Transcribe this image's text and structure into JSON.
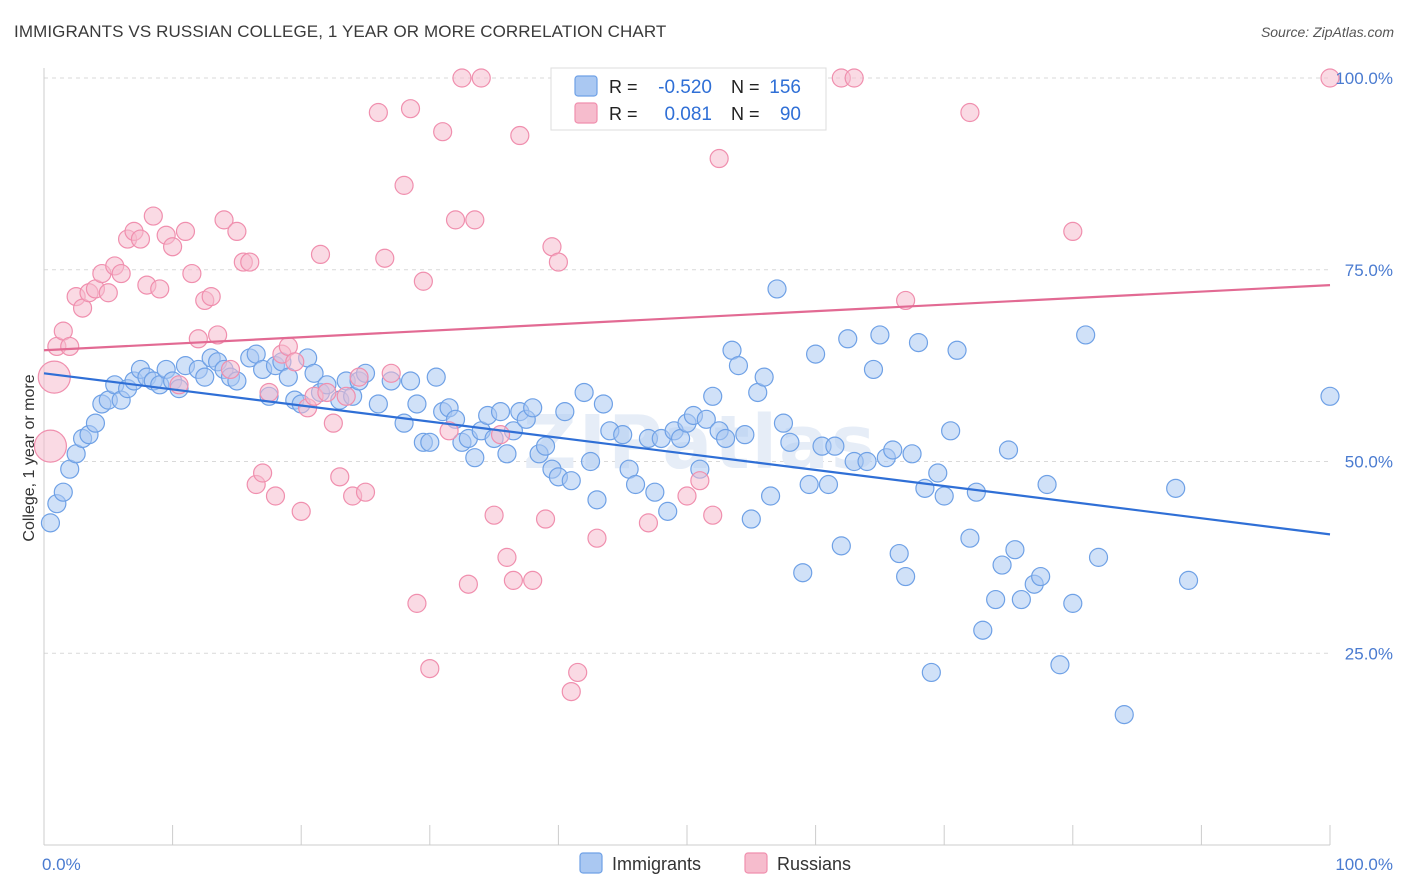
{
  "title": "IMMIGRANTS VS RUSSIAN COLLEGE, 1 YEAR OR MORE CORRELATION CHART",
  "source": "Source: ZipAtlas.com",
  "watermark": "ZIPatlas",
  "colors": {
    "blue": "#6fa1e6",
    "blue_fill": "#aac8f2",
    "blue_line": "#2f6fd6",
    "pink": "#f08fae",
    "pink_fill": "#f6bccd",
    "pink_line": "#e26a93",
    "grid": "#d9d9d9",
    "tick_label": "#4a7bd0"
  },
  "legend": {
    "rows": [
      {
        "r_label": "R =",
        "r_value": "-0.520",
        "n_label": "N =",
        "n_value": "156",
        "series": "Immigrants"
      },
      {
        "r_label": "R =",
        "r_value": "0.081",
        "n_label": "N =",
        "n_value": "90",
        "series": "Russians"
      }
    ],
    "bottom": [
      "Immigrants",
      "Russians"
    ]
  },
  "chart_data": {
    "type": "scatter",
    "title": "IMMIGRANTS VS RUSSIAN COLLEGE, 1 YEAR OR MORE CORRELATION CHART",
    "xlabel": "",
    "ylabel": "College, 1 year or more",
    "xlim": [
      0,
      100
    ],
    "ylim": [
      0,
      100
    ],
    "x_tick_labels": [
      "0.0%",
      "100.0%"
    ],
    "y_ticks": [
      25,
      50,
      75,
      100
    ],
    "y_tick_labels": [
      "25.0%",
      "50.0%",
      "75.0%",
      "100.0%"
    ],
    "grid": true,
    "legend_position": "top-center",
    "series": [
      {
        "name": "Immigrants",
        "color": "#6fa1e6",
        "trend": {
          "x": [
            0,
            100
          ],
          "y": [
            61.5,
            40.5
          ]
        },
        "points": [
          [
            0.5,
            42
          ],
          [
            1,
            44.5
          ],
          [
            1.5,
            46
          ],
          [
            2,
            49
          ],
          [
            2.5,
            51
          ],
          [
            3,
            53
          ],
          [
            3.5,
            53.5
          ],
          [
            4,
            55
          ],
          [
            4.5,
            57.5
          ],
          [
            5,
            58
          ],
          [
            5.5,
            60
          ],
          [
            6,
            58
          ],
          [
            6.5,
            59.5
          ],
          [
            7,
            60.5
          ],
          [
            7.5,
            62
          ],
          [
            8,
            61
          ],
          [
            8.5,
            60.5
          ],
          [
            9,
            60
          ],
          [
            9.5,
            62
          ],
          [
            10,
            60.5
          ],
          [
            10.5,
            59.5
          ],
          [
            11,
            62.5
          ],
          [
            12,
            62
          ],
          [
            12.5,
            61
          ],
          [
            13,
            63.5
          ],
          [
            13.5,
            63
          ],
          [
            14,
            62
          ],
          [
            14.5,
            61
          ],
          [
            15,
            60.5
          ],
          [
            16,
            63.5
          ],
          [
            16.5,
            64
          ],
          [
            17,
            62
          ],
          [
            17.5,
            58.5
          ],
          [
            18,
            62.5
          ],
          [
            18.5,
            63
          ],
          [
            19,
            61
          ],
          [
            19.5,
            58
          ],
          [
            20,
            57.5
          ],
          [
            20.5,
            63.5
          ],
          [
            21,
            61.5
          ],
          [
            21.5,
            59
          ],
          [
            22,
            60
          ],
          [
            23,
            58
          ],
          [
            23.5,
            60.5
          ],
          [
            24,
            58.5
          ],
          [
            24.5,
            60.5
          ],
          [
            25,
            61.5
          ],
          [
            26,
            57.5
          ],
          [
            27,
            60.5
          ],
          [
            28,
            55
          ],
          [
            28.5,
            60.5
          ],
          [
            29,
            57.5
          ],
          [
            29.5,
            52.5
          ],
          [
            30,
            52.5
          ],
          [
            30.5,
            61
          ],
          [
            31,
            56.5
          ],
          [
            31.5,
            57
          ],
          [
            32,
            55.5
          ],
          [
            32.5,
            52.5
          ],
          [
            33,
            53
          ],
          [
            33.5,
            50.5
          ],
          [
            34,
            54
          ],
          [
            34.5,
            56
          ],
          [
            35,
            53
          ],
          [
            35.5,
            56.5
          ],
          [
            36,
            51
          ],
          [
            36.5,
            54
          ],
          [
            37,
            56.5
          ],
          [
            37.5,
            55.5
          ],
          [
            38,
            57
          ],
          [
            38.5,
            51
          ],
          [
            39,
            52
          ],
          [
            39.5,
            49
          ],
          [
            40,
            48
          ],
          [
            40.5,
            56.5
          ],
          [
            41,
            47.5
          ],
          [
            42,
            59
          ],
          [
            42.5,
            50
          ],
          [
            43,
            45
          ],
          [
            43.5,
            57.5
          ],
          [
            44,
            54
          ],
          [
            45,
            53.5
          ],
          [
            45.5,
            49
          ],
          [
            46,
            47
          ],
          [
            47,
            53
          ],
          [
            47.5,
            46
          ],
          [
            48,
            53
          ],
          [
            48.5,
            43.5
          ],
          [
            49,
            54
          ],
          [
            49.5,
            53
          ],
          [
            50,
            55
          ],
          [
            50.5,
            56
          ],
          [
            51,
            49
          ],
          [
            51.5,
            55.5
          ],
          [
            52,
            58.5
          ],
          [
            52.5,
            54
          ],
          [
            53,
            53
          ],
          [
            53.5,
            64.5
          ],
          [
            54,
            62.5
          ],
          [
            54.5,
            53.5
          ],
          [
            55,
            42.5
          ],
          [
            55.5,
            59
          ],
          [
            56,
            61
          ],
          [
            56.5,
            45.5
          ],
          [
            57,
            72.5
          ],
          [
            57.5,
            55
          ],
          [
            58,
            52.5
          ],
          [
            59,
            35.5
          ],
          [
            59.5,
            47
          ],
          [
            60,
            64
          ],
          [
            60.5,
            52
          ],
          [
            61,
            47
          ],
          [
            61.5,
            52
          ],
          [
            62,
            39
          ],
          [
            62.5,
            66
          ],
          [
            63,
            50
          ],
          [
            64,
            50
          ],
          [
            64.5,
            62
          ],
          [
            65,
            66.5
          ],
          [
            65.5,
            50.5
          ],
          [
            66,
            51.5
          ],
          [
            66.5,
            38
          ],
          [
            67,
            35
          ],
          [
            67.5,
            51
          ],
          [
            68,
            65.5
          ],
          [
            68.5,
            46.5
          ],
          [
            69,
            22.5
          ],
          [
            69.5,
            48.5
          ],
          [
            70,
            45.5
          ],
          [
            70.5,
            54
          ],
          [
            71,
            64.5
          ],
          [
            72,
            40
          ],
          [
            72.5,
            46
          ],
          [
            73,
            28
          ],
          [
            74,
            32
          ],
          [
            74.5,
            36.5
          ],
          [
            75,
            51.5
          ],
          [
            75.5,
            38.5
          ],
          [
            76,
            32
          ],
          [
            77,
            34
          ],
          [
            77.5,
            35
          ],
          [
            78,
            47
          ],
          [
            79,
            23.5
          ],
          [
            80,
            31.5
          ],
          [
            81,
            66.5
          ],
          [
            82,
            37.5
          ],
          [
            84,
            17
          ],
          [
            88,
            46.5
          ],
          [
            89,
            34.5
          ],
          [
            100,
            58.5
          ]
        ]
      },
      {
        "name": "Russians",
        "color": "#f08fae",
        "trend": {
          "x": [
            0,
            100
          ],
          "y": [
            64.5,
            73
          ]
        },
        "points": [
          [
            0.5,
            52
          ],
          [
            0.8,
            61
          ],
          [
            1,
            65
          ],
          [
            1.5,
            67
          ],
          [
            2,
            65
          ],
          [
            2.5,
            71.5
          ],
          [
            3,
            70
          ],
          [
            3.5,
            72
          ],
          [
            4,
            72.5
          ],
          [
            4.5,
            74.5
          ],
          [
            5,
            72
          ],
          [
            5.5,
            75.5
          ],
          [
            6,
            74.5
          ],
          [
            6.5,
            79
          ],
          [
            7,
            80
          ],
          [
            7.5,
            79
          ],
          [
            8,
            73
          ],
          [
            8.5,
            82
          ],
          [
            9,
            72.5
          ],
          [
            9.5,
            79.5
          ],
          [
            10,
            78
          ],
          [
            10.5,
            60
          ],
          [
            11,
            80
          ],
          [
            11.5,
            74.5
          ],
          [
            12,
            66
          ],
          [
            12.5,
            71
          ],
          [
            13,
            71.5
          ],
          [
            13.5,
            66.5
          ],
          [
            14,
            81.5
          ],
          [
            14.5,
            62
          ],
          [
            15,
            80
          ],
          [
            15.5,
            76
          ],
          [
            16,
            76
          ],
          [
            16.5,
            47
          ],
          [
            17,
            48.5
          ],
          [
            17.5,
            59
          ],
          [
            18,
            45.5
          ],
          [
            18.5,
            64
          ],
          [
            19,
            65
          ],
          [
            19.5,
            63
          ],
          [
            20,
            43.5
          ],
          [
            20.5,
            57
          ],
          [
            21,
            58.5
          ],
          [
            21.5,
            77
          ],
          [
            22,
            59
          ],
          [
            22.5,
            55
          ],
          [
            23,
            48
          ],
          [
            23.5,
            58.5
          ],
          [
            24,
            45.5
          ],
          [
            24.5,
            61
          ],
          [
            25,
            46
          ],
          [
            26,
            95.5
          ],
          [
            26.5,
            76.5
          ],
          [
            27,
            61.5
          ],
          [
            28,
            86
          ],
          [
            28.5,
            96
          ],
          [
            29,
            31.5
          ],
          [
            29.5,
            73.5
          ],
          [
            30,
            23
          ],
          [
            31,
            93
          ],
          [
            31.5,
            54
          ],
          [
            32,
            81.5
          ],
          [
            32.5,
            100
          ],
          [
            33,
            34
          ],
          [
            33.5,
            81.5
          ],
          [
            34,
            100
          ],
          [
            35,
            43
          ],
          [
            35.5,
            53.5
          ],
          [
            36,
            37.5
          ],
          [
            36.5,
            34.5
          ],
          [
            37,
            92.5
          ],
          [
            38,
            34.5
          ],
          [
            39,
            42.5
          ],
          [
            39.5,
            78
          ],
          [
            40,
            76
          ],
          [
            41,
            20
          ],
          [
            41.5,
            22.5
          ],
          [
            50,
            45.5
          ],
          [
            51,
            47.5
          ],
          [
            52,
            43
          ],
          [
            52.5,
            89.5
          ],
          [
            58,
            100
          ],
          [
            62,
            100
          ],
          [
            63,
            100
          ],
          [
            67,
            71
          ],
          [
            72,
            95.5
          ],
          [
            80,
            80
          ],
          [
            100,
            100
          ],
          [
            43,
            40
          ],
          [
            47,
            42
          ]
        ]
      }
    ]
  }
}
